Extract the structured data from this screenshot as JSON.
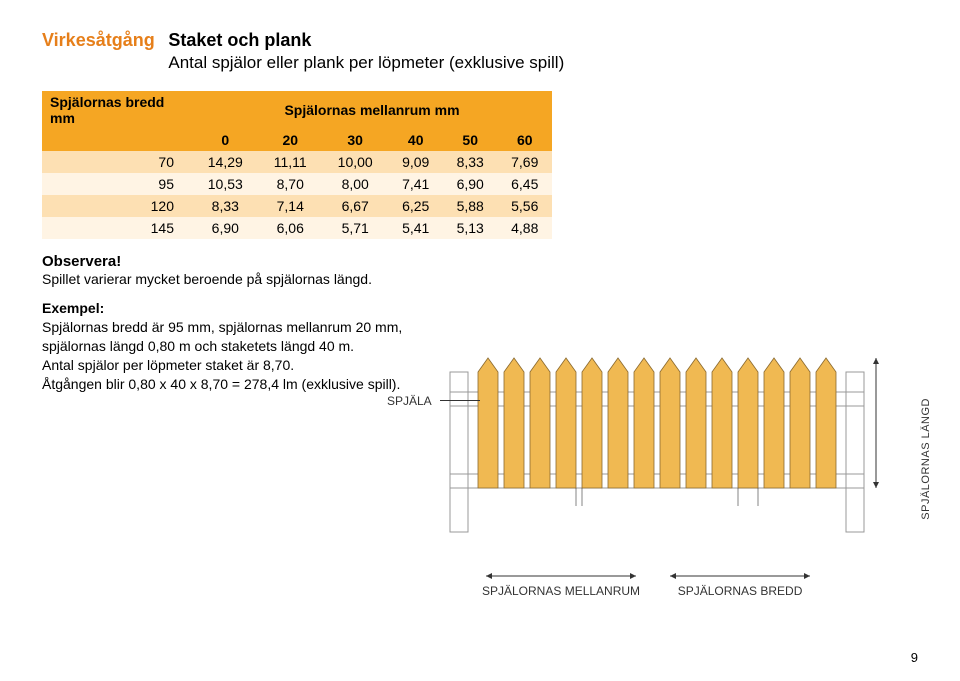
{
  "title": {
    "left": "Virkesåtgång",
    "main": "Staket och plank",
    "sub": "Antal spjälor eller plank per löpmeter (exklusive spill)"
  },
  "table": {
    "row_header": "Spjälornas bredd mm",
    "col_header": "Spjälornas mellanrum mm",
    "cols": [
      "0",
      "20",
      "30",
      "40",
      "50",
      "60"
    ],
    "rows": [
      {
        "h": "70",
        "v": [
          "14,29",
          "11,11",
          "10,00",
          "9,09",
          "8,33",
          "7,69"
        ]
      },
      {
        "h": "95",
        "v": [
          "10,53",
          "8,70",
          "8,00",
          "7,41",
          "6,90",
          "6,45"
        ]
      },
      {
        "h": "120",
        "v": [
          "8,33",
          "7,14",
          "6,67",
          "6,25",
          "5,88",
          "5,56"
        ]
      },
      {
        "h": "145",
        "v": [
          "6,90",
          "6,06",
          "5,71",
          "5,41",
          "5,13",
          "4,88"
        ]
      }
    ],
    "header_bg": "#f5a623",
    "odd_bg": "#fde0b3",
    "even_bg": "#fff4e4"
  },
  "obs": {
    "title": "Observera!",
    "body": "Spillet varierar mycket beroende på spjälornas längd."
  },
  "example": {
    "title": "Exempel:",
    "l1": "Spjälornas bredd är 95 mm, spjälornas mellanrum 20 mm,",
    "l2": "spjälornas längd 0,80 m och staketets längd 40 m.",
    "l3": "Antal spjälor per löpmeter staket är 8,70.",
    "l4": "Åtgången blir 0,80 x 40 x 8,70 = 278,4 lm (exklusive spill)."
  },
  "diagram": {
    "label_spjala": "SPJÄLA",
    "label_length": "SPJÄLORNAS LÄNGD",
    "label_gap": "SPJÄLORNAS MELLANRUM",
    "label_width": "SPJÄLORNAS BREDD",
    "picket_fill": "#f0b952",
    "picket_stroke": "#8b6a2f",
    "rail_stroke": "#999",
    "picket_count": 14,
    "picket_w": 20,
    "picket_gap": 6,
    "picket_h": 130,
    "tip_h": 14
  },
  "page": "9"
}
